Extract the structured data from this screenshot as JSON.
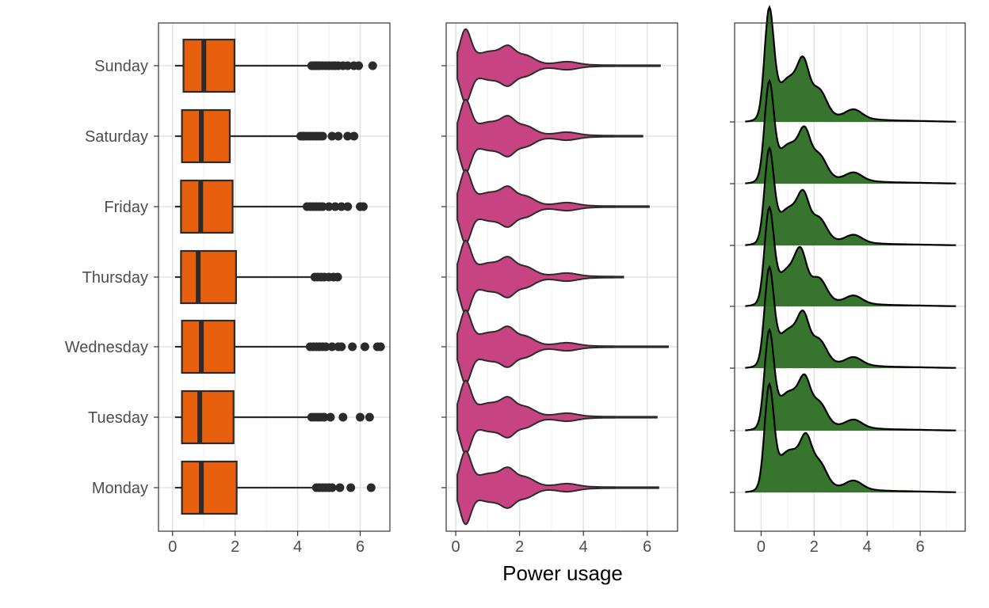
{
  "x_axis_title": "Power usage",
  "colors": {
    "box": "#e8600d",
    "violin": "#c74382",
    "ridge": "#2f6e25",
    "outline": "#2b2b2b"
  },
  "chart_data": [
    {
      "type": "box",
      "orientation": "horizontal",
      "categories": [
        "Sunday",
        "Saturday",
        "Friday",
        "Thursday",
        "Wednesday",
        "Tuesday",
        "Monday"
      ],
      "xlim": [
        -0.45,
        6.95
      ],
      "x_ticks": [
        0,
        2,
        4,
        6
      ],
      "x_minor_ticks": [
        1,
        3,
        5
      ],
      "grid": true,
      "boxes": [
        {
          "day": "Sunday",
          "q1": 0.35,
          "median": 1.0,
          "q3": 1.98,
          "whisker_low": 0.08,
          "whisker_high": 4.4,
          "outliers": [
            4.45,
            4.5,
            4.55,
            4.6,
            4.65,
            4.7,
            4.8,
            4.9,
            5.0,
            5.1,
            5.2,
            5.3,
            5.45,
            5.6,
            5.8,
            5.95,
            6.4
          ]
        },
        {
          "day": "Saturday",
          "q1": 0.3,
          "median": 0.92,
          "q3": 1.83,
          "whisker_low": 0.08,
          "whisker_high": 4.1,
          "outliers": [
            4.1,
            4.15,
            4.2,
            4.3,
            4.4,
            4.5,
            4.6,
            4.7,
            4.8,
            5.1,
            5.3,
            5.6,
            5.8
          ]
        },
        {
          "day": "Friday",
          "q1": 0.27,
          "median": 0.9,
          "q3": 1.92,
          "whisker_low": 0.08,
          "whisker_high": 4.3,
          "outliers": [
            4.3,
            4.4,
            4.5,
            4.6,
            4.7,
            4.8,
            5.0,
            5.2,
            5.4,
            5.6,
            6.0,
            6.1
          ]
        },
        {
          "day": "Thursday",
          "q1": 0.27,
          "median": 0.82,
          "q3": 2.03,
          "whisker_low": 0.08,
          "whisker_high": 4.5,
          "outliers": [
            4.55,
            4.65,
            4.75,
            4.85,
            5.0,
            5.15,
            5.28
          ]
        },
        {
          "day": "Wednesday",
          "q1": 0.3,
          "median": 0.92,
          "q3": 1.98,
          "whisker_low": 0.08,
          "whisker_high": 4.4,
          "outliers": [
            4.4,
            4.5,
            4.6,
            4.7,
            4.8,
            4.9,
            5.1,
            5.3,
            5.4,
            5.75,
            6.15,
            6.55,
            6.65
          ]
        },
        {
          "day": "Tuesday",
          "q1": 0.3,
          "median": 0.87,
          "q3": 1.95,
          "whisker_low": 0.08,
          "whisker_high": 4.4,
          "outliers": [
            4.45,
            4.55,
            4.65,
            4.75,
            4.85,
            5.05,
            5.45,
            6.0,
            6.3
          ]
        },
        {
          "day": "Monday",
          "q1": 0.3,
          "median": 0.92,
          "q3": 2.05,
          "whisker_low": 0.08,
          "whisker_high": 4.55,
          "outliers": [
            4.6,
            4.7,
            4.8,
            4.9,
            5.0,
            5.1,
            5.35,
            5.7,
            6.35
          ]
        }
      ]
    },
    {
      "type": "violin",
      "orientation": "horizontal",
      "categories": [
        "Sunday",
        "Saturday",
        "Friday",
        "Thursday",
        "Wednesday",
        "Tuesday",
        "Monday"
      ],
      "xlim": [
        -0.3,
        6.95
      ],
      "x_ticks": [
        0,
        2,
        4,
        6
      ],
      "x_minor_ticks": [
        1,
        3,
        5
      ],
      "grid": true,
      "violins": [
        {
          "day": "Sunday",
          "min": 0.05,
          "max": 6.4
        },
        {
          "day": "Saturday",
          "min": 0.05,
          "max": 5.85
        },
        {
          "day": "Friday",
          "min": 0.05,
          "max": 6.05
        },
        {
          "day": "Thursday",
          "min": 0.05,
          "max": 5.25
        },
        {
          "day": "Wednesday",
          "min": 0.05,
          "max": 6.65
        },
        {
          "day": "Tuesday",
          "min": 0.05,
          "max": 6.3
        },
        {
          "day": "Monday",
          "min": 0.05,
          "max": 6.35
        }
      ]
    },
    {
      "type": "area",
      "subtype": "ridgeline",
      "categories": [
        "Sunday",
        "Saturday",
        "Friday",
        "Thursday",
        "Wednesday",
        "Tuesday",
        "Monday"
      ],
      "xlim": [
        -1.0,
        7.7
      ],
      "x_ticks": [
        0,
        2,
        4,
        6
      ],
      "x_minor_ticks": [
        1,
        3,
        5,
        7
      ],
      "x_range_drawn": [
        -0.6,
        7.35
      ],
      "grid": true,
      "ridges": [
        {
          "day": "Sunday",
          "peak_x": 0.3,
          "second_peak_x": 1.6,
          "third_peak_x": 2.2
        },
        {
          "day": "Saturday",
          "peak_x": 0.3,
          "second_peak_x": 1.65,
          "third_peak_x": 2.2
        },
        {
          "day": "Friday",
          "peak_x": 0.3,
          "second_peak_x": 1.6,
          "third_peak_x": 2.2
        },
        {
          "day": "Thursday",
          "peak_x": 0.3,
          "second_peak_x": 1.5,
          "third_peak_x": 2.2
        },
        {
          "day": "Wednesday",
          "peak_x": 0.3,
          "second_peak_x": 1.6,
          "third_peak_x": 2.2
        },
        {
          "day": "Tuesday",
          "peak_x": 0.3,
          "second_peak_x": 1.65,
          "third_peak_x": 2.2
        },
        {
          "day": "Monday",
          "peak_x": 0.3,
          "second_peak_x": 1.7,
          "third_peak_x": 2.2
        }
      ]
    }
  ]
}
